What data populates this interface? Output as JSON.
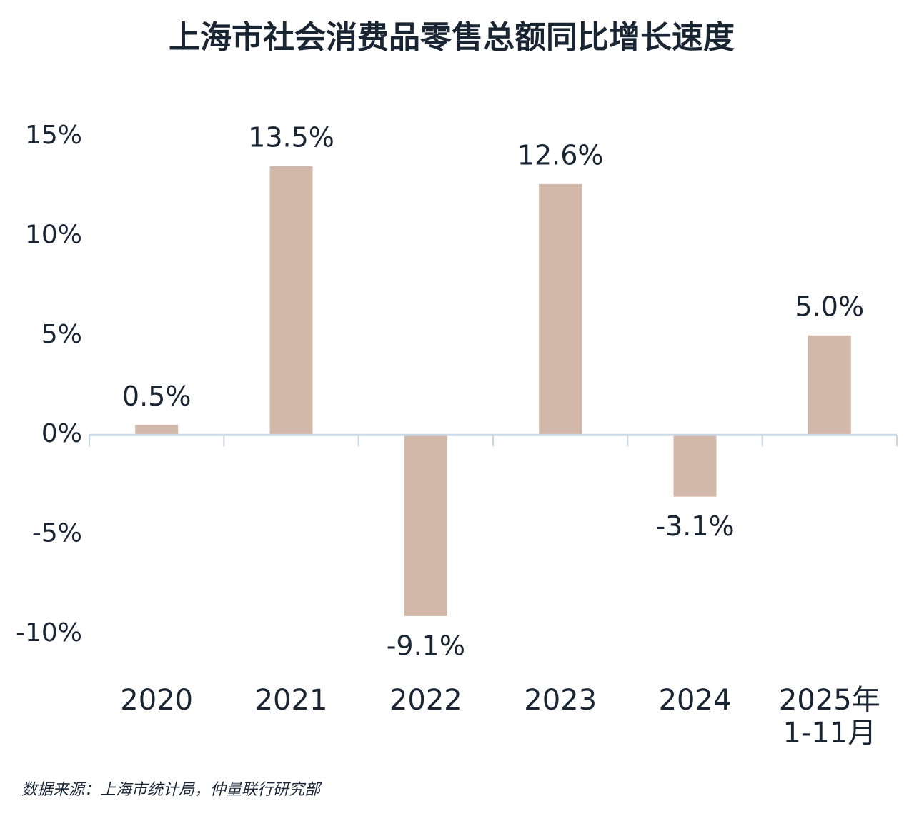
{
  "chart_data": {
    "type": "bar",
    "title": "上海市社会消费品零售总额同比增长速度",
    "categories": [
      "2020",
      "2021",
      "2022",
      "2023",
      "2024",
      "2025年\n1-11月"
    ],
    "values": [
      0.5,
      13.5,
      -9.1,
      12.6,
      -3.1,
      5.0
    ],
    "value_labels": [
      "0.5%",
      "13.5%",
      "-9.1%",
      "12.6%",
      "-3.1%",
      "5.0%"
    ],
    "color": "#d2b8a8",
    "ylim": [
      -10,
      15
    ],
    "yticks": [
      {
        "value": 15,
        "label": "15%"
      },
      {
        "value": 10,
        "label": "10%"
      },
      {
        "value": 5,
        "label": "5%"
      },
      {
        "value": 0,
        "label": "0%"
      },
      {
        "value": -5,
        "label": "-5%"
      },
      {
        "value": -10,
        "label": "-10%"
      }
    ],
    "grid": false,
    "source": "数据来源：上海市统计局，仲量联行研究部"
  }
}
